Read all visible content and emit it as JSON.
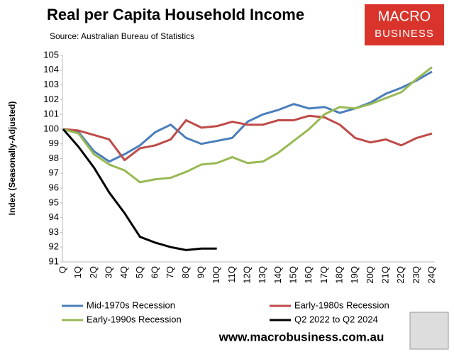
{
  "chart_data": {
    "type": "line",
    "title": "Real per Capita Household Income",
    "subtitle": "Source: Australian Bureau of Statistics",
    "ylabel": "Index (Seasonally-Adjusted)",
    "logo": [
      "MACRO",
      "BUSINESS"
    ],
    "footer": "www.macrobusiness.com.au",
    "categories": [
      "Q",
      "1Q",
      "2Q",
      "3Q",
      "4Q",
      "5Q",
      "6Q",
      "7Q",
      "8Q",
      "9Q",
      "10Q",
      "11Q",
      "12Q",
      "13Q",
      "14Q",
      "15Q",
      "16Q",
      "17Q",
      "18Q",
      "19Q",
      "20Q",
      "21Q",
      "22Q",
      "23Q",
      "24Q"
    ],
    "series": [
      {
        "name": "Mid-1970s Recession",
        "color": "#4a7ebb",
        "values": [
          100,
          99.8,
          98.5,
          97.8,
          98.3,
          98.9,
          99.8,
          100.3,
          99.4,
          99.0,
          99.2,
          99.4,
          100.5,
          101.0,
          101.3,
          101.7,
          101.4,
          101.5,
          101.1,
          101.4,
          101.8,
          102.4,
          102.8,
          103.3,
          103.9
        ]
      },
      {
        "name": "Early-1980s Recession",
        "color": "#be4b48",
        "values": [
          100,
          99.9,
          99.6,
          99.3,
          97.9,
          98.7,
          98.9,
          99.3,
          100.6,
          100.1,
          100.2,
          100.5,
          100.3,
          100.3,
          100.6,
          100.6,
          100.9,
          100.8,
          100.3,
          99.4,
          99.1,
          99.3,
          98.9,
          99.4,
          99.7
        ]
      },
      {
        "name": "Early-1990s Recession",
        "color": "#98b954",
        "values": [
          100,
          99.7,
          98.3,
          97.6,
          97.2,
          96.4,
          96.6,
          96.7,
          97.1,
          97.6,
          97.7,
          98.1,
          97.7,
          97.8,
          98.4,
          99.2,
          100.0,
          101.0,
          101.5,
          101.4,
          101.7,
          102.1,
          102.5,
          103.4,
          104.2
        ]
      },
      {
        "name": "Q2 2022 to Q2 2024",
        "color": "#000000",
        "values": [
          100,
          98.8,
          97.4,
          95.7,
          94.3,
          92.7,
          92.3,
          92.0,
          91.8,
          91.9,
          91.9,
          null,
          null,
          null,
          null,
          null,
          null,
          null,
          null,
          null,
          null,
          null,
          null,
          null,
          null
        ]
      }
    ],
    "ylim": [
      91,
      105
    ],
    "yticks": [
      91,
      92,
      93,
      94,
      95,
      96,
      97,
      98,
      99,
      100,
      101,
      102,
      103,
      104,
      105
    ],
    "grid": false,
    "legend": "bottom"
  }
}
